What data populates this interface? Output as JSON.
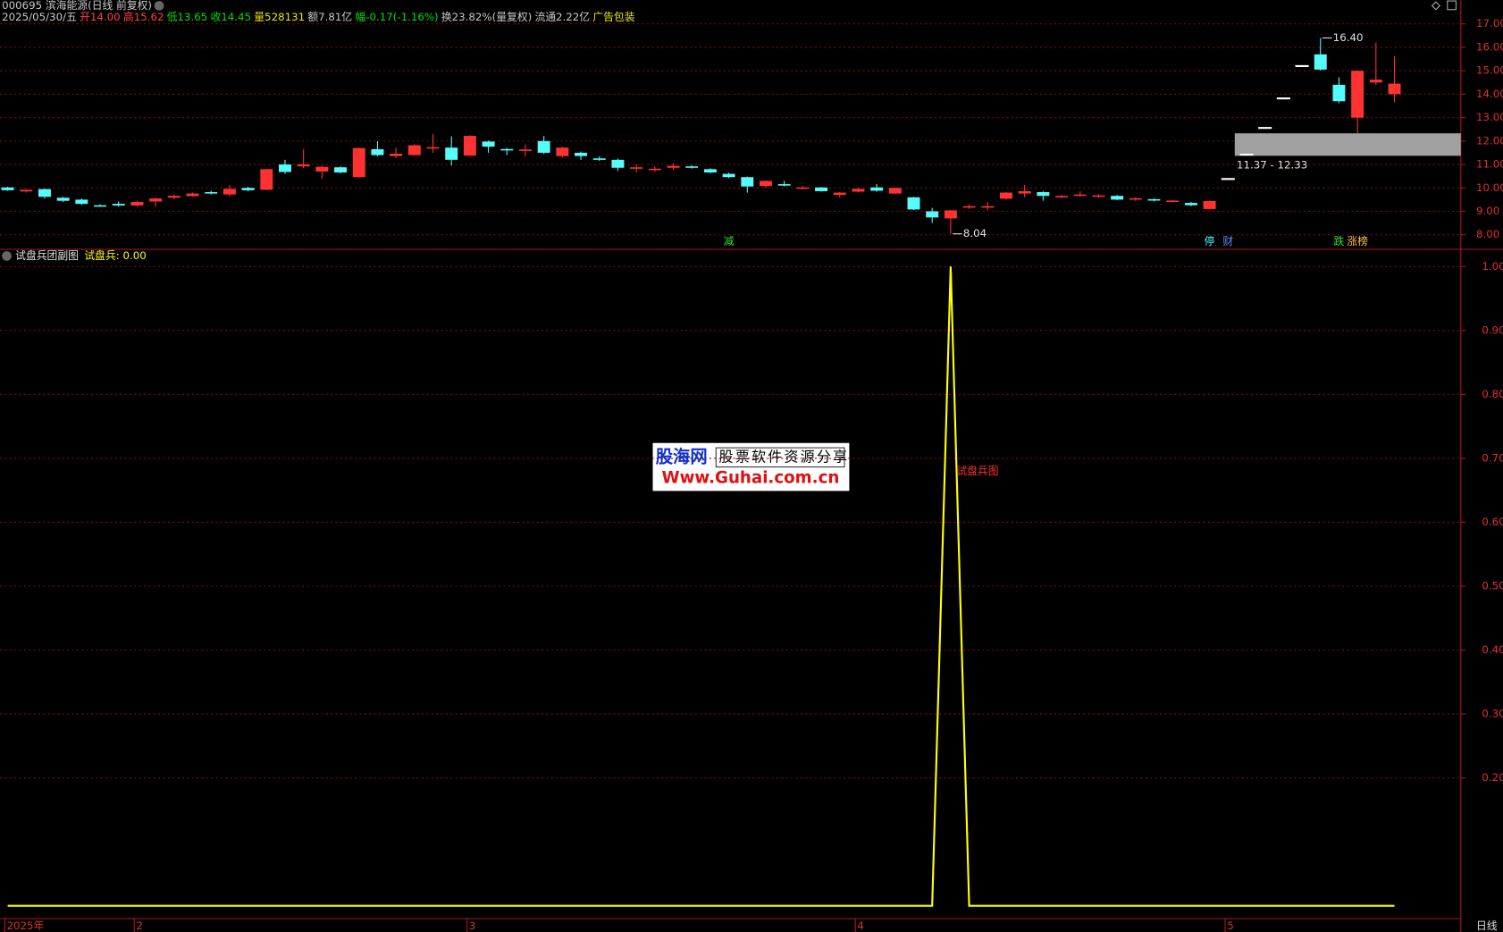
{
  "header": {
    "title": "000695 滨海能源(日线 前复权)",
    "quote": [
      {
        "text": "2025/05/30/五",
        "color": "#c8c8c8"
      },
      {
        "text": "开14.00",
        "color": "#ff4040"
      },
      {
        "text": "高15.62",
        "color": "#ff4040"
      },
      {
        "text": "低13.65",
        "color": "#00e000"
      },
      {
        "text": "收14.45",
        "color": "#00e000"
      },
      {
        "text": "量528131",
        "color": "#e8e800"
      },
      {
        "text": "额7.81亿",
        "color": "#c8c8c8"
      },
      {
        "text": "幅-0.17(-1.16%)",
        "color": "#00e000"
      },
      {
        "text": "换23.82%(量复权)",
        "color": "#c8c8c8"
      },
      {
        "text": "流通2.22亿",
        "color": "#c8c8c8"
      },
      {
        "text": "广告包装",
        "color": "#e8e800"
      }
    ]
  },
  "period_label": "日线",
  "watermark": {
    "brand": "股海网",
    "slogan": "股票软件资源分享",
    "url": "Www.Guhai.com.cn"
  },
  "chart_data": [
    {
      "type": "candlestick",
      "categories": [
        "2025年",
        null,
        null,
        null,
        null,
        null,
        null,
        "2",
        null,
        null,
        null,
        null,
        null,
        null,
        null,
        null,
        null,
        null,
        null,
        null,
        null,
        null,
        null,
        null,
        null,
        "3",
        null,
        null,
        null,
        null,
        null,
        null,
        null,
        null,
        null,
        null,
        null,
        null,
        null,
        null,
        null,
        null,
        null,
        null,
        null,
        null,
        "4",
        null,
        null,
        null,
        null,
        null,
        null,
        null,
        null,
        null,
        null,
        null,
        null,
        null,
        null,
        null,
        null,
        null,
        null,
        null,
        "5",
        null,
        null,
        null,
        null,
        null,
        null,
        null,
        null,
        null
      ],
      "open": [
        10.02,
        9.85,
        9.95,
        9.58,
        9.5,
        9.26,
        9.32,
        9.25,
        9.42,
        9.58,
        9.65,
        9.82,
        9.72,
        10.0,
        9.92,
        11.0,
        10.92,
        10.7,
        10.88,
        10.46,
        11.65,
        11.36,
        11.4,
        11.7,
        11.72,
        11.38,
        11.98,
        11.66,
        11.58,
        12.0,
        11.36,
        11.5,
        11.26,
        11.2,
        10.84,
        10.78,
        10.86,
        10.92,
        10.8,
        10.6,
        10.46,
        10.08,
        10.16,
        9.98,
        10.02,
        9.7,
        9.84,
        10.02,
        9.76,
        9.6,
        9.0,
        8.7,
        9.18,
        9.18,
        9.54,
        9.76,
        9.82,
        9.6,
        9.68,
        9.66,
        9.66,
        9.5,
        9.52,
        9.44,
        9.36,
        9.1,
        10.38,
        11.42,
        12.56,
        13.82,
        15.2,
        15.7,
        14.4,
        13.0,
        14.5,
        14.0
      ],
      "high": [
        10.05,
        9.95,
        9.97,
        9.62,
        9.55,
        9.3,
        9.42,
        9.45,
        9.58,
        9.72,
        9.8,
        9.88,
        10.12,
        10.05,
        10.82,
        11.2,
        11.65,
        10.95,
        10.92,
        11.72,
        12.0,
        11.72,
        11.86,
        12.3,
        12.2,
        12.25,
        12.02,
        11.7,
        11.86,
        12.22,
        11.75,
        11.55,
        11.35,
        11.25,
        11.0,
        10.92,
        11.05,
        10.96,
        10.84,
        10.65,
        10.48,
        10.32,
        10.3,
        10.08,
        10.04,
        9.82,
        10.0,
        10.16,
        10.02,
        9.62,
        9.15,
        9.06,
        9.3,
        9.4,
        9.82,
        10.12,
        9.86,
        9.7,
        9.86,
        9.74,
        9.7,
        9.6,
        9.56,
        9.5,
        9.4,
        9.46,
        10.38,
        11.42,
        12.56,
        13.82,
        15.2,
        16.4,
        14.72,
        15.0,
        16.2,
        15.62
      ],
      "low": [
        9.88,
        9.8,
        9.55,
        9.4,
        9.28,
        9.2,
        9.2,
        9.2,
        9.2,
        9.52,
        9.62,
        9.72,
        9.62,
        9.86,
        9.9,
        10.6,
        10.85,
        10.4,
        10.62,
        10.44,
        11.35,
        11.28,
        11.38,
        11.5,
        10.95,
        11.36,
        11.5,
        11.4,
        11.35,
        11.45,
        11.3,
        11.2,
        11.15,
        10.72,
        10.66,
        10.7,
        10.76,
        10.82,
        10.62,
        10.42,
        9.8,
        10.0,
        10.06,
        9.94,
        9.84,
        9.6,
        9.8,
        9.84,
        9.74,
        9.05,
        8.5,
        8.04,
        9.1,
        9.05,
        9.5,
        9.6,
        9.45,
        9.55,
        9.62,
        9.58,
        9.48,
        9.44,
        9.42,
        9.4,
        9.22,
        9.08,
        10.38,
        11.42,
        12.56,
        13.82,
        15.2,
        15.0,
        13.62,
        12.33,
        14.4,
        13.65
      ],
      "close": [
        9.9,
        9.92,
        9.62,
        9.45,
        9.32,
        9.24,
        9.25,
        9.4,
        9.55,
        9.66,
        9.76,
        9.76,
        9.96,
        9.9,
        10.8,
        10.68,
        11.0,
        10.9,
        10.66,
        11.7,
        11.4,
        11.46,
        11.82,
        11.74,
        11.2,
        12.22,
        11.76,
        11.6,
        11.64,
        11.5,
        11.72,
        11.36,
        11.2,
        10.86,
        10.88,
        10.82,
        10.94,
        10.86,
        10.66,
        10.46,
        10.06,
        10.3,
        10.12,
        10.02,
        9.86,
        9.8,
        9.96,
        9.88,
        10.0,
        9.08,
        8.74,
        9.04,
        9.22,
        9.22,
        9.8,
        9.86,
        9.66,
        9.66,
        9.72,
        9.68,
        9.5,
        9.56,
        9.46,
        9.46,
        9.26,
        9.44,
        10.38,
        11.42,
        12.56,
        13.82,
        15.2,
        15.05,
        13.7,
        15.0,
        14.62,
        14.45
      ],
      "up_color": "#ff3232",
      "down_color": "#54fcfc",
      "flat_color": "#ffffff",
      "ylim": [
        7.38,
        18.02
      ],
      "yticks": [
        {
          "value": 8,
          "label": "8.00"
        },
        {
          "value": 9,
          "label": "9.00"
        },
        {
          "value": 10,
          "label": "10.00"
        },
        {
          "value": 11,
          "label": "11.00"
        },
        {
          "value": 12,
          "label": "12.00"
        },
        {
          "value": 13,
          "label": "13.00"
        },
        {
          "value": 14,
          "label": "14.00"
        },
        {
          "value": 15,
          "label": "15.00"
        },
        {
          "value": 16,
          "label": "16.00"
        },
        {
          "value": 17,
          "label": "17.00"
        }
      ],
      "grid": true,
      "annotations": [
        {
          "index": 71,
          "value": 16.4,
          "label": "16.40"
        },
        {
          "index": 51,
          "value": 8.04,
          "label": "8.04"
        }
      ],
      "gap": {
        "start_index": 66,
        "low": 11.37,
        "high": 12.33,
        "label": "11.37 - 12.33",
        "color": "#a0a0a0"
      },
      "signals": [
        {
          "index": 39,
          "text": "减",
          "color": "#30e030"
        },
        {
          "index": 65,
          "text": "停",
          "color": "#54fcfc"
        },
        {
          "index": 66,
          "text": "财",
          "color": "#5a8cff"
        },
        {
          "index": 72,
          "text": "跌",
          "color": "#30e030"
        },
        {
          "index": 73,
          "text": "涨榜",
          "color": "#ffc040"
        }
      ]
    },
    {
      "type": "line",
      "title": "试盘兵团副图",
      "legend_text": "试盘兵: 0.00",
      "series": [
        {
          "name": "试盘兵",
          "color": "#ffff00",
          "values": [
            0,
            0,
            0,
            0,
            0,
            0,
            0,
            0,
            0,
            0,
            0,
            0,
            0,
            0,
            0,
            0,
            0,
            0,
            0,
            0,
            0,
            0,
            0,
            0,
            0,
            0,
            0,
            0,
            0,
            0,
            0,
            0,
            0,
            0,
            0,
            0,
            0,
            0,
            0,
            0,
            0,
            0,
            0,
            0,
            0,
            0,
            0,
            0,
            0,
            0,
            0,
            1,
            0,
            0,
            0,
            0,
            0,
            0,
            0,
            0,
            0,
            0,
            0,
            0,
            0,
            0,
            0,
            0,
            0,
            0,
            0,
            0,
            0,
            0,
            0,
            0
          ]
        }
      ],
      "annotation": {
        "index": 51,
        "text": "试盘兵图"
      },
      "ylim": [
        -0.02,
        1.024
      ],
      "yticks": [
        {
          "value": 0.2,
          "label": "0.20"
        },
        {
          "value": 0.3,
          "label": "0.30"
        },
        {
          "value": 0.4,
          "label": "0.40"
        },
        {
          "value": 0.5,
          "label": "0.50"
        },
        {
          "value": 0.6,
          "label": "0.60"
        },
        {
          "value": 0.7,
          "label": "0.70"
        },
        {
          "value": 0.8,
          "label": "0.80"
        },
        {
          "value": 0.9,
          "label": "0.90"
        },
        {
          "value": 1,
          "label": "1.00"
        }
      ],
      "grid": true
    }
  ]
}
